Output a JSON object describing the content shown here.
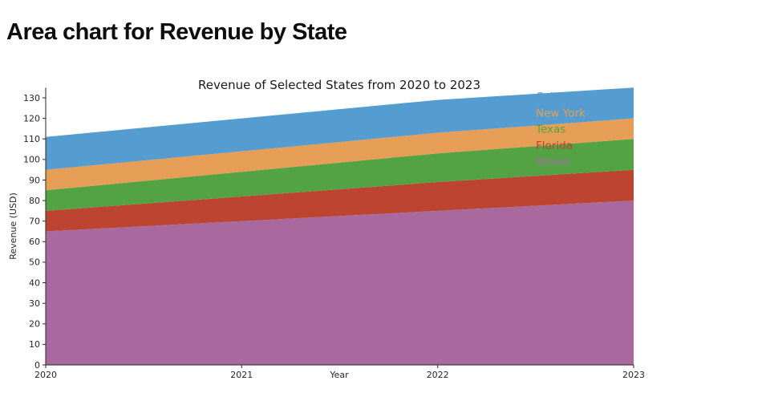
{
  "title": "Area chart for Revenue by State",
  "chart": {
    "subtitle": "Revenue of Selected States from 2020 to 2023",
    "xlabel": "Year",
    "ylabel": "Revenue (USD)"
  },
  "chart_data": {
    "type": "area",
    "stacked": true,
    "title": "Revenue of Selected States from 2020 to 2023",
    "xlabel": "Year",
    "ylabel": "Revenue (USD)",
    "x": [
      2020,
      2021,
      2022,
      2023
    ],
    "xticks": [
      "2020",
      "2021",
      "2022",
      "2023"
    ],
    "yticks": [
      0,
      10,
      20,
      30,
      40,
      50,
      60,
      70,
      80,
      90,
      100,
      110,
      120,
      130
    ],
    "ylim": [
      0,
      135
    ],
    "grid": false,
    "legend_position": "top-right",
    "series": [
      {
        "name": "Illinois",
        "color": "#a9699f",
        "values": [
          65,
          70,
          75,
          80
        ]
      },
      {
        "name": "Florida",
        "color": "#bc4430",
        "values": [
          10,
          12,
          14,
          15
        ]
      },
      {
        "name": "Texas",
        "color": "#53a345",
        "values": [
          10,
          12,
          14,
          15
        ]
      },
      {
        "name": "New York",
        "color": "#e69d56",
        "values": [
          10,
          10,
          10,
          10
        ]
      },
      {
        "name": "California",
        "color": "#559cd0",
        "values": [
          16,
          16,
          16,
          15
        ]
      }
    ],
    "stack_totals": [
      111,
      120,
      129,
      135
    ],
    "legend_order": [
      "California",
      "New York",
      "Texas",
      "Florida",
      "Illinois"
    ]
  }
}
